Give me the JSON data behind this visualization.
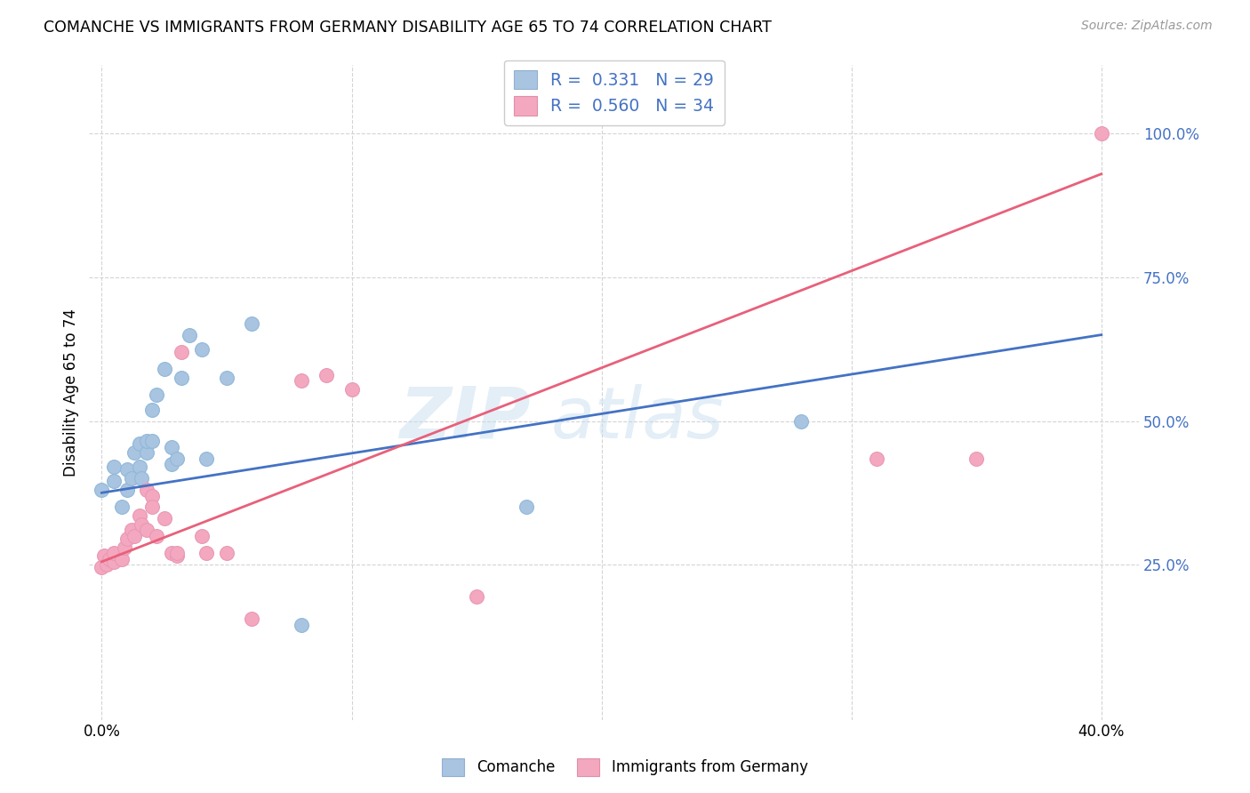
{
  "title": "COMANCHE VS IMMIGRANTS FROM GERMANY DISABILITY AGE 65 TO 74 CORRELATION CHART",
  "source": "Source: ZipAtlas.com",
  "ylabel": "Disability Age 65 to 74",
  "watermark": "ZIPatlas",
  "blue_R": 0.331,
  "blue_N": 29,
  "pink_R": 0.56,
  "pink_N": 34,
  "blue_color": "#a8c4e0",
  "pink_color": "#f4a8c0",
  "blue_line_color": "#4472c4",
  "pink_line_color": "#e8607a",
  "blue_dots": [
    [
      0.0,
      0.38
    ],
    [
      0.005,
      0.395
    ],
    [
      0.005,
      0.42
    ],
    [
      0.008,
      0.35
    ],
    [
      0.01,
      0.38
    ],
    [
      0.01,
      0.415
    ],
    [
      0.012,
      0.4
    ],
    [
      0.013,
      0.445
    ],
    [
      0.015,
      0.42
    ],
    [
      0.015,
      0.46
    ],
    [
      0.016,
      0.4
    ],
    [
      0.018,
      0.445
    ],
    [
      0.018,
      0.465
    ],
    [
      0.02,
      0.465
    ],
    [
      0.02,
      0.52
    ],
    [
      0.022,
      0.545
    ],
    [
      0.025,
      0.59
    ],
    [
      0.028,
      0.425
    ],
    [
      0.028,
      0.455
    ],
    [
      0.03,
      0.435
    ],
    [
      0.032,
      0.575
    ],
    [
      0.035,
      0.65
    ],
    [
      0.04,
      0.625
    ],
    [
      0.042,
      0.435
    ],
    [
      0.05,
      0.575
    ],
    [
      0.06,
      0.67
    ],
    [
      0.08,
      0.145
    ],
    [
      0.17,
      0.35
    ],
    [
      0.28,
      0.5
    ]
  ],
  "pink_dots": [
    [
      0.0,
      0.245
    ],
    [
      0.001,
      0.265
    ],
    [
      0.002,
      0.25
    ],
    [
      0.003,
      0.26
    ],
    [
      0.005,
      0.255
    ],
    [
      0.005,
      0.27
    ],
    [
      0.008,
      0.26
    ],
    [
      0.009,
      0.28
    ],
    [
      0.01,
      0.295
    ],
    [
      0.012,
      0.31
    ],
    [
      0.013,
      0.3
    ],
    [
      0.015,
      0.335
    ],
    [
      0.016,
      0.32
    ],
    [
      0.018,
      0.31
    ],
    [
      0.018,
      0.38
    ],
    [
      0.02,
      0.37
    ],
    [
      0.02,
      0.35
    ],
    [
      0.022,
      0.3
    ],
    [
      0.025,
      0.33
    ],
    [
      0.028,
      0.27
    ],
    [
      0.03,
      0.265
    ],
    [
      0.03,
      0.27
    ],
    [
      0.032,
      0.62
    ],
    [
      0.04,
      0.3
    ],
    [
      0.042,
      0.27
    ],
    [
      0.05,
      0.27
    ],
    [
      0.06,
      0.155
    ],
    [
      0.08,
      0.57
    ],
    [
      0.09,
      0.58
    ],
    [
      0.1,
      0.555
    ],
    [
      0.15,
      0.195
    ],
    [
      0.31,
      0.435
    ],
    [
      0.35,
      0.435
    ],
    [
      0.4,
      1.0
    ]
  ],
  "xlim": [
    -0.005,
    0.415
  ],
  "ylim": [
    -0.02,
    1.12
  ],
  "yticks": [
    0.25,
    0.5,
    0.75,
    1.0
  ],
  "ytick_labels": [
    "25.0%",
    "50.0%",
    "75.0%",
    "100.0%"
  ],
  "xticks": [
    0.0,
    0.1,
    0.2,
    0.3,
    0.4
  ],
  "xtick_labels": [
    "0.0%",
    "",
    "",
    "",
    "40.0%"
  ],
  "blue_line_x": [
    0.0,
    0.4
  ],
  "blue_line_y": [
    0.375,
    0.65
  ],
  "pink_line_x": [
    0.0,
    0.4
  ],
  "pink_line_y": [
    0.255,
    0.93
  ]
}
